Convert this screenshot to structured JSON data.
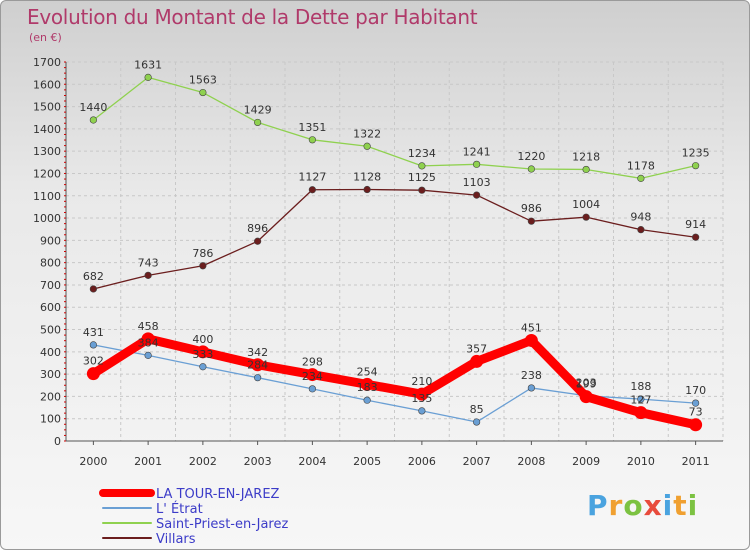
{
  "title": "Evolution du Montant de la Dette par Habitant",
  "unit": "(en €)",
  "logo": "Proxiti",
  "chart_data": {
    "type": "line",
    "title": "Evolution du Montant de la Dette par Habitant",
    "ylabel": "(en €)",
    "xlabel": "",
    "ylim": [
      0,
      1700
    ],
    "yticks": [
      0,
      100,
      200,
      300,
      400,
      500,
      600,
      700,
      800,
      900,
      1000,
      1100,
      1200,
      1300,
      1400,
      1500,
      1600,
      1700
    ],
    "x": [
      "2000",
      "2001",
      "2002",
      "2003",
      "2004",
      "2005",
      "2006",
      "2007",
      "2008",
      "2009",
      "2010",
      "2011"
    ],
    "grid": true,
    "legend_position": "bottom-left",
    "series": [
      {
        "name": "LA TOUR-EN-JAREZ",
        "color": "#ff0000",
        "values": [
          302,
          458,
          400,
          342,
          298,
          254,
          210,
          357,
          451,
          199,
          127,
          73
        ]
      },
      {
        "name": "L' Étrat",
        "color": "#6a9fd4",
        "values": [
          431,
          384,
          333,
          284,
          234,
          183,
          135,
          85,
          238,
          203,
          188,
          170
        ]
      },
      {
        "name": "Saint-Priest-en-Jarez",
        "color": "#8fd14f",
        "values": [
          1440,
          1631,
          1563,
          1429,
          1351,
          1322,
          1234,
          1241,
          1220,
          1218,
          1178,
          1235
        ]
      },
      {
        "name": "Villars",
        "color": "#6b1e1e",
        "values": [
          682,
          743,
          786,
          896,
          1127,
          1128,
          1125,
          1103,
          986,
          1004,
          948,
          914
        ]
      }
    ]
  }
}
